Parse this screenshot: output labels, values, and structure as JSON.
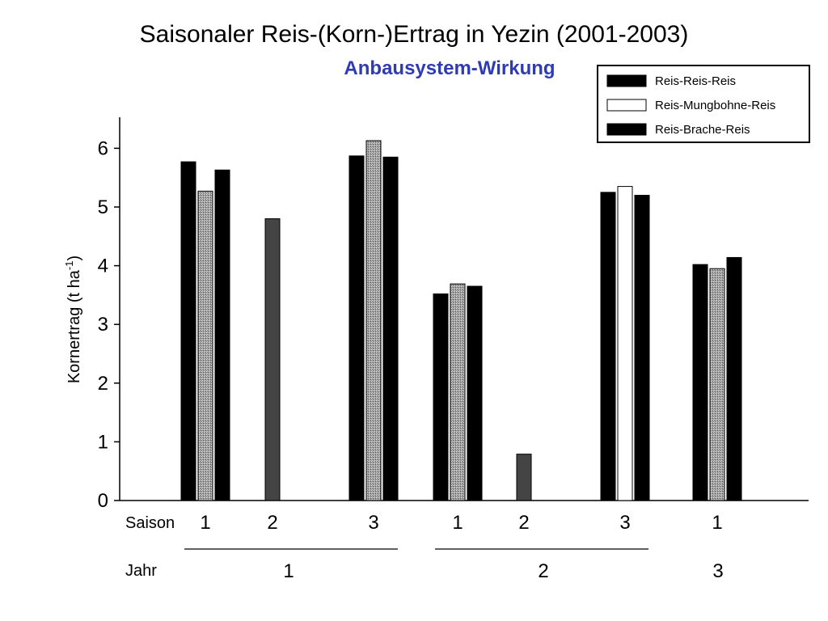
{
  "chart_data": {
    "type": "bar",
    "title": "Saisonaler Reis-(Korn-)Ertrag in Yezin (2001-2003)",
    "subtitle": "Anbausystem-Wirkung",
    "ylabel_main": "Kornertrag (t ha",
    "ylabel_sup": "-1",
    "ylabel_close": ")",
    "ylim": [
      0,
      6.5
    ],
    "yticks": [
      "0",
      "1",
      "2",
      "3",
      "4",
      "5",
      "6"
    ],
    "saison_label": "Saison",
    "jahr_label": "Jahr",
    "categories": [
      "1",
      "2",
      "3",
      "1",
      "2",
      "3",
      "1"
    ],
    "years": [
      {
        "label": "1",
        "groups": [
          0,
          1,
          2
        ]
      },
      {
        "label": "2",
        "groups": [
          3,
          4,
          5
        ]
      },
      {
        "label": "3",
        "groups": [
          6
        ]
      }
    ],
    "series": [
      {
        "name": "Reis-Reis-Reis",
        "color": "#000000",
        "values": [
          5.77,
          null,
          5.87,
          3.52,
          null,
          5.25,
          4.02
        ]
      },
      {
        "name": "Reis-Mungbohne-Reis",
        "color": "#ffffff",
        "values": [
          5.27,
          4.8,
          6.13,
          3.69,
          0.79,
          5.35,
          3.95
        ]
      },
      {
        "name": "Reis-Brache-Reis",
        "color": "#000000",
        "values": [
          5.63,
          null,
          5.85,
          3.65,
          null,
          5.2,
          4.14
        ]
      }
    ],
    "bar_fills": [
      [
        "black",
        "hatch",
        "black"
      ],
      [
        null,
        "dark",
        null
      ],
      [
        "black",
        "hatch",
        "black"
      ],
      [
        "black",
        "hatch",
        "black"
      ],
      [
        null,
        "dark",
        null
      ],
      [
        "black",
        "white",
        "black"
      ],
      [
        "black",
        "hatch",
        "black"
      ]
    ],
    "legend_position": "top-right",
    "grid": false
  }
}
